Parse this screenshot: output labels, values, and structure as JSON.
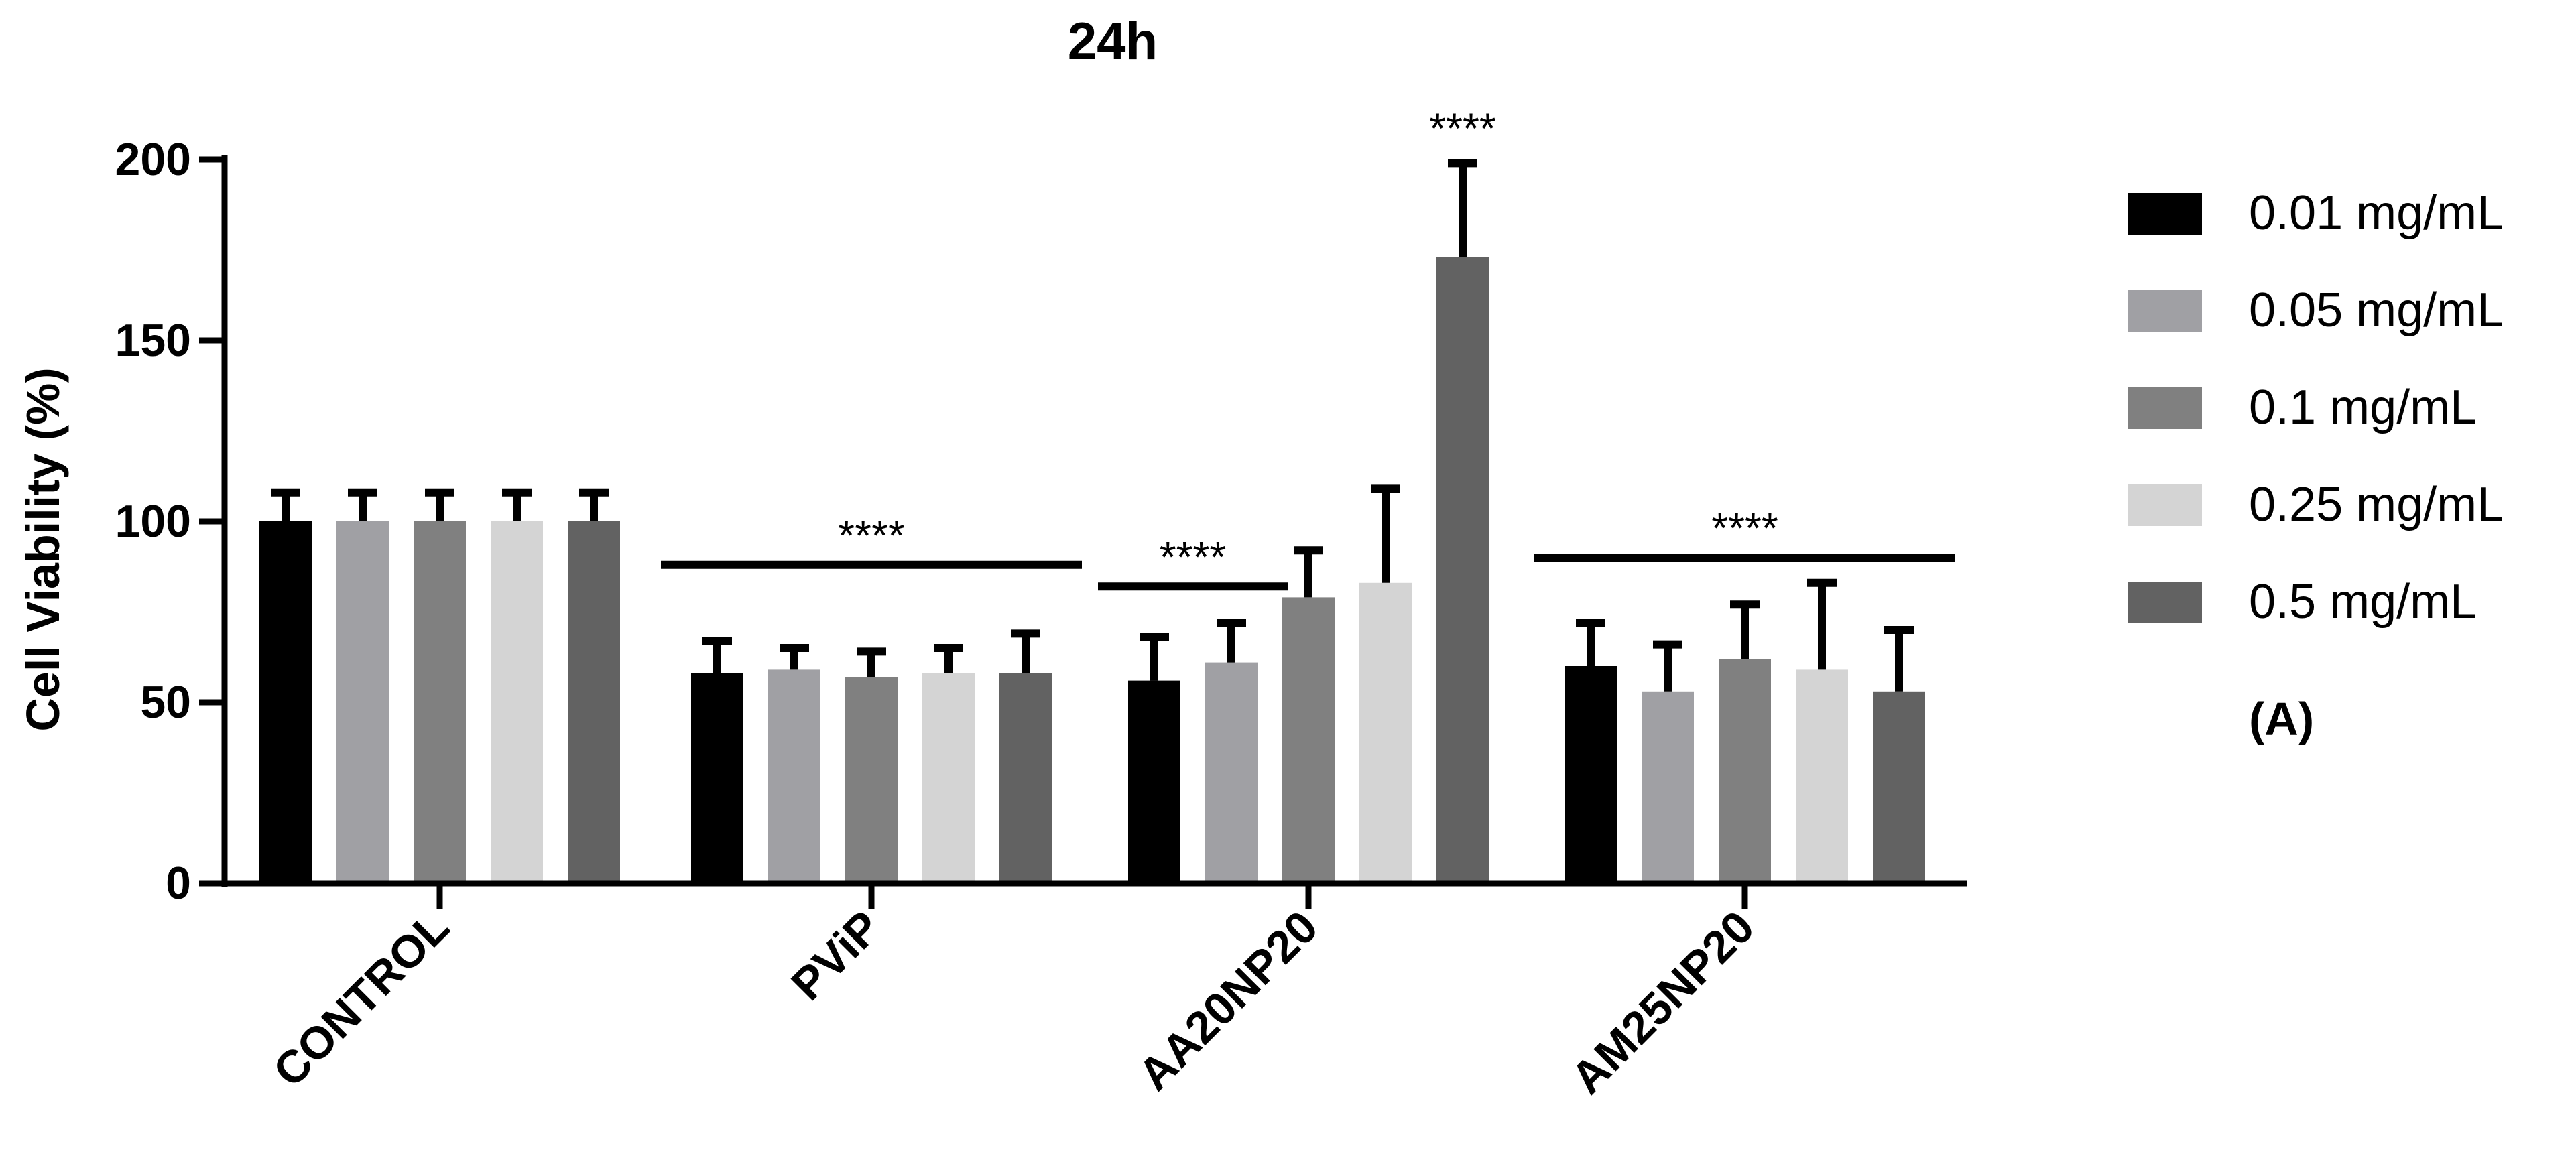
{
  "chart_data": {
    "type": "bar",
    "title": "24h",
    "xlabel": "",
    "ylabel": "Cell Viability (%)",
    "ylim": [
      0,
      200
    ],
    "yticks": [
      "0",
      "50",
      "100",
      "150",
      "200"
    ],
    "ytick_values": [
      0,
      50,
      100,
      150,
      200
    ],
    "grid": false,
    "legend_position": "right",
    "categories": [
      "CONTROL",
      "PViP",
      "AA20NP20",
      "AM25NP20"
    ],
    "series": [
      {
        "name": "0.01 mg/mL",
        "color": "#000000",
        "values": [
          100,
          58,
          56,
          60
        ],
        "errors": [
          8,
          9,
          12,
          12
        ]
      },
      {
        "name": "0.05 mg/mL",
        "color": "#a0a0a4",
        "values": [
          100,
          59,
          61,
          53
        ],
        "errors": [
          8,
          6,
          11,
          13
        ]
      },
      {
        "name": "0.1 mg/mL",
        "color": "#808080",
        "values": [
          100,
          57,
          79,
          62
        ],
        "errors": [
          8,
          7,
          13,
          15
        ]
      },
      {
        "name": "0.25 mg/mL",
        "color": "#d4d4d4",
        "values": [
          100,
          58,
          83,
          59
        ],
        "errors": [
          8,
          7,
          26,
          24
        ]
      },
      {
        "name": "0.5 mg/mL",
        "color": "#626262",
        "values": [
          100,
          58,
          173,
          53
        ],
        "errors": [
          8,
          11,
          26,
          17
        ]
      }
    ],
    "annotations": [
      {
        "text": "****",
        "category_from": 1,
        "series_from": 0,
        "category_to": 1,
        "series_to": 4,
        "y_line": 88,
        "type": "bracket"
      },
      {
        "text": "****",
        "category_from": 2,
        "series_from": 0,
        "category_to": 2,
        "series_to": 1,
        "y_line": 82,
        "type": "bracket"
      },
      {
        "text": "****",
        "category_from": 2,
        "series_from": 4,
        "category_to": 2,
        "series_to": 4,
        "y_line": 199,
        "type": "above"
      },
      {
        "text": "****",
        "category_from": 3,
        "series_from": 0,
        "category_to": 3,
        "series_to": 4,
        "y_line": 90,
        "type": "bracket"
      }
    ],
    "panel_label": "(A)"
  }
}
